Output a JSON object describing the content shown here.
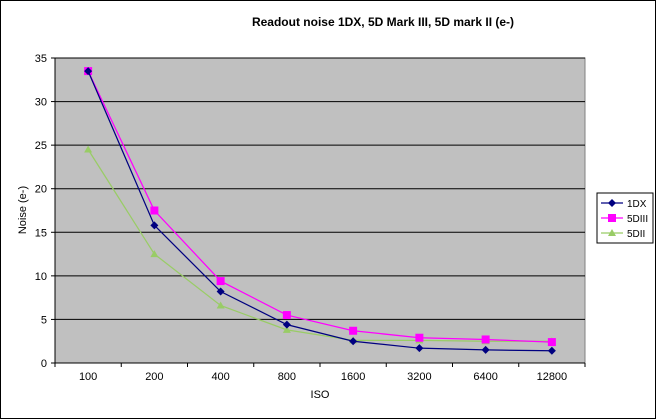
{
  "chart_data": {
    "type": "line",
    "title": "Readout noise 1DX, 5D Mark III, 5D mark II (e-)",
    "xlabel": "ISO",
    "ylabel": "Noise (e-)",
    "categories": [
      "100",
      "200",
      "400",
      "800",
      "1600",
      "3200",
      "6400",
      "12800"
    ],
    "ylim": [
      0,
      35
    ],
    "yticks": [
      0,
      5,
      10,
      15,
      20,
      25,
      30,
      35
    ],
    "grid": true,
    "legend": "right",
    "plot_background": "#c0c0c0",
    "series": [
      {
        "name": "1DX",
        "color": "#000080",
        "marker": "diamond",
        "values": [
          33.5,
          15.8,
          8.2,
          4.4,
          2.5,
          1.7,
          1.5,
          1.4
        ]
      },
      {
        "name": "5DIII",
        "color": "#ff00ff",
        "marker": "square",
        "values": [
          33.5,
          17.5,
          9.4,
          5.5,
          3.7,
          2.9,
          2.7,
          2.4
        ]
      },
      {
        "name": "5DII",
        "color": "#99cc66",
        "marker": "triangle",
        "values": [
          24.5,
          12.5,
          6.6,
          3.8,
          2.6,
          2.6,
          2.5,
          2.5
        ]
      }
    ]
  }
}
